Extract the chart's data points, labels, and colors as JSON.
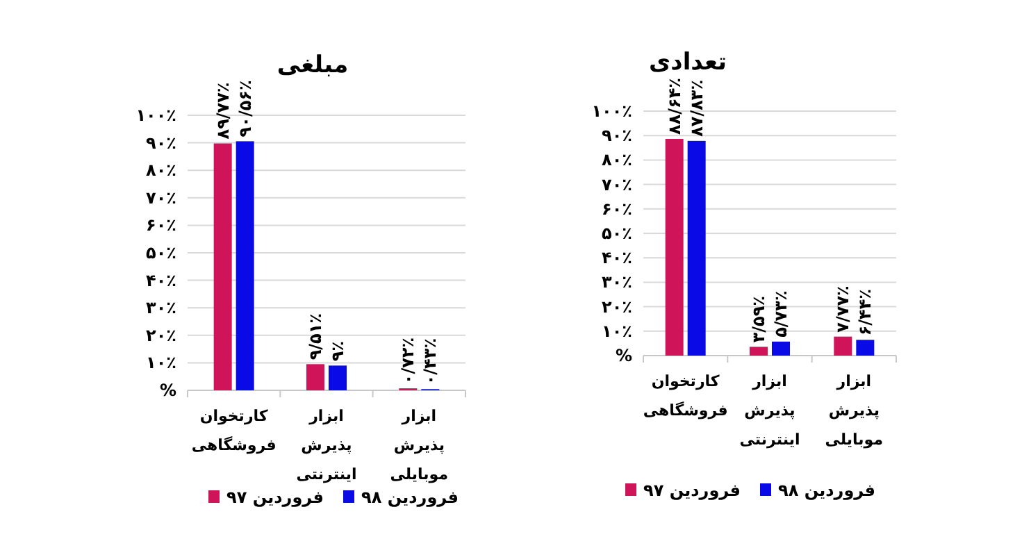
{
  "chart_data": [
    {
      "type": "bar",
      "title": "مبلغی",
      "categories": [
        "کارتخوان فروشگاهی",
        "ابزار پذیرش اینترنتی",
        "ابزار پذیرش موبایلی"
      ],
      "series": [
        {
          "name": "فروردین ۹۷",
          "color": "#d0145a",
          "values": [
            89.77,
            9.51,
            0.72
          ],
          "value_labels": [
            "۸۹/۷۷٪",
            "۹/۵۱٪",
            "۰/۷۲٪"
          ]
        },
        {
          "name": "فروردین ۹۸",
          "color": "#0a0ae6",
          "values": [
            90.56,
            9,
            0.43
          ],
          "value_labels": [
            "۹۰/۵۶٪",
            "۹٪",
            "۰/۴۳٪"
          ]
        }
      ],
      "ylim": [
        0,
        100
      ],
      "yticks": [
        {
          "value": 0,
          "label": "%"
        },
        {
          "value": 10,
          "label": "۱۰٪"
        },
        {
          "value": 20,
          "label": "۲۰٪"
        },
        {
          "value": 30,
          "label": "۳۰٪"
        },
        {
          "value": 40,
          "label": "۴۰٪"
        },
        {
          "value": 50,
          "label": "۵۰٪"
        },
        {
          "value": 60,
          "label": "۶۰٪"
        },
        {
          "value": 70,
          "label": "۷۰٪"
        },
        {
          "value": 80,
          "label": "۸۰٪"
        },
        {
          "value": 90,
          "label": "۹۰٪"
        },
        {
          "value": 100,
          "label": "۱۰۰٪"
        }
      ],
      "grid": "y",
      "legend": "bottom"
    },
    {
      "type": "bar",
      "title": "تعدادی",
      "categories": [
        "کارتخوان فروشگاهی",
        "ابزار پذیرش اینترنتی",
        "ابزار پذیرش موبایلی"
      ],
      "series": [
        {
          "name": "فروردین ۹۷",
          "color": "#d0145a",
          "values": [
            88.64,
            3.59,
            7.77
          ],
          "value_labels": [
            "۸۸/۶۴٪",
            "۳/۵۹٪",
            "۷/۷۷٪"
          ]
        },
        {
          "name": "فروردین ۹۸",
          "color": "#0a0ae6",
          "values": [
            87.83,
            5.73,
            6.44
          ],
          "value_labels": [
            "۸۷/۸۳٪",
            "۵/۷۳٪",
            "۶/۴۴٪"
          ]
        }
      ],
      "ylim": [
        0,
        100
      ],
      "yticks": [
        {
          "value": 0,
          "label": "%"
        },
        {
          "value": 10,
          "label": "۱۰٪"
        },
        {
          "value": 20,
          "label": "۲۰٪"
        },
        {
          "value": 30,
          "label": "۳۰٪"
        },
        {
          "value": 40,
          "label": "۴۰٪"
        },
        {
          "value": 50,
          "label": "۵۰٪"
        },
        {
          "value": 60,
          "label": "۶۰٪"
        },
        {
          "value": 70,
          "label": "۷۰٪"
        },
        {
          "value": 80,
          "label": "۸۰٪"
        },
        {
          "value": 90,
          "label": "۹۰٪"
        },
        {
          "value": 100,
          "label": "۱۰۰٪"
        }
      ],
      "grid": "y",
      "legend": "bottom"
    }
  ]
}
